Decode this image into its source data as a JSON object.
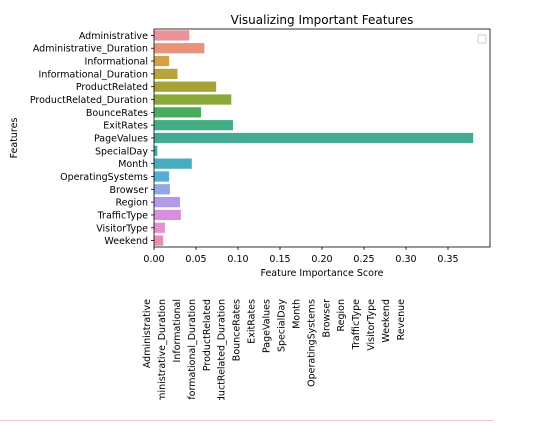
{
  "chart_data": {
    "type": "bar",
    "orientation": "horizontal",
    "title": "Visualizing Important Features",
    "xlabel": "Feature Importance Score",
    "ylabel": "Features",
    "xlim": [
      0.0,
      0.4
    ],
    "xticks": [
      "0.00",
      "0.05",
      "0.10",
      "0.15",
      "0.20",
      "0.25",
      "0.30",
      "0.35"
    ],
    "xtick_values": [
      0.0,
      0.05,
      0.1,
      0.15,
      0.2,
      0.25,
      0.3,
      0.35
    ],
    "grid": false,
    "legend": "top-right (empty)",
    "categories": [
      "Administrative",
      "Administrative_Duration",
      "Informational",
      "Informational_Duration",
      "ProductRelated",
      "ProductRelated_Duration",
      "BounceRates",
      "ExitRates",
      "PageValues",
      "SpecialDay",
      "Month",
      "OperatingSystems",
      "Browser",
      "Region",
      "TrafficType",
      "VisitorType",
      "Weekend"
    ],
    "values": [
      0.042,
      0.06,
      0.018,
      0.028,
      0.074,
      0.092,
      0.056,
      0.094,
      0.38,
      0.004,
      0.045,
      0.018,
      0.019,
      0.031,
      0.032,
      0.013,
      0.011
    ],
    "colors": [
      "#e8939a",
      "#e8937a",
      "#d4a045",
      "#b8a43c",
      "#a5a23a",
      "#8ba83a",
      "#4aad5c",
      "#43ae84",
      "#44aa94",
      "#45aba8",
      "#48adbf",
      "#55aed5",
      "#8fa8e8",
      "#b29ae8",
      "#d88fe0",
      "#e88fcf",
      "#e98fb6"
    ]
  },
  "bottom_labels": [
    "Administrative",
    "Administrative_Duration",
    "Informational",
    "Informational_Duration",
    "ProductRelated",
    "ProductRelated_Duration",
    "BounceRates",
    "ExitRates",
    "PageValues",
    "SpecialDay",
    "Month",
    "OperatingSystems",
    "Browser",
    "Region",
    "TrafficType",
    "VisitorType",
    "Weekend",
    "Revenue"
  ]
}
